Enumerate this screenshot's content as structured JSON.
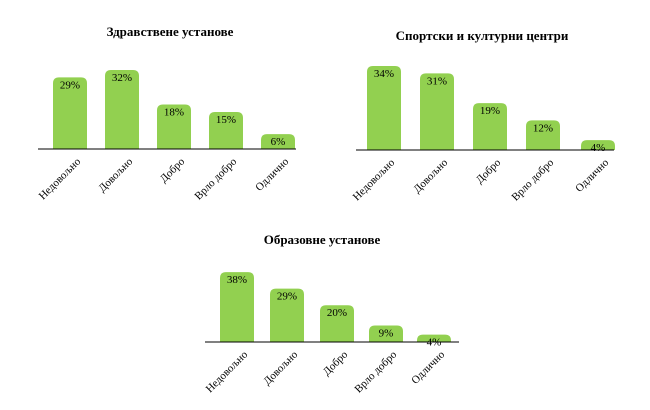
{
  "colors": {
    "bar": "#92d050",
    "axis": "#000000",
    "text": "#000000"
  },
  "chart_data": [
    {
      "type": "bar",
      "title": "Здравствене установе",
      "categories": [
        "Недовољно",
        "Довољно",
        "Добро",
        "Врло добро",
        "Одлично"
      ],
      "values": [
        29,
        32,
        18,
        15,
        6
      ],
      "value_labels": [
        "29%",
        "32%",
        "18%",
        "15%",
        "6%"
      ],
      "unit": "%",
      "ylim": [
        0,
        40
      ],
      "grid": false,
      "legend": "none"
    },
    {
      "type": "bar",
      "title": "Спортски и културни центри",
      "categories": [
        "Недовољно",
        "Довољно",
        "Добро",
        "Врло добро",
        "Одлично"
      ],
      "values": [
        34,
        31,
        19,
        12,
        4
      ],
      "value_labels": [
        "34%",
        "31%",
        "19%",
        "12%",
        "4%"
      ],
      "unit": "%",
      "ylim": [
        0,
        40
      ],
      "grid": false,
      "legend": "none"
    },
    {
      "type": "bar",
      "title": "Образовне установе",
      "categories": [
        "Недовољно",
        "Довољно",
        "Добро",
        "Врло добро",
        "Одлично"
      ],
      "values": [
        38,
        29,
        20,
        9,
        4
      ],
      "value_labels": [
        "38%",
        "29%",
        "20%",
        "9%",
        "4%"
      ],
      "unit": "%",
      "ylim": [
        0,
        40
      ],
      "grid": false,
      "legend": "none"
    }
  ]
}
